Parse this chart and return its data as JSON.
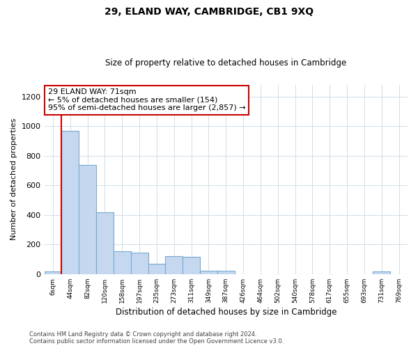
{
  "title": "29, ELAND WAY, CAMBRIDGE, CB1 9XQ",
  "subtitle": "Size of property relative to detached houses in Cambridge",
  "xlabel": "Distribution of detached houses by size in Cambridge",
  "ylabel": "Number of detached properties",
  "bar_color": "#c5d8f0",
  "bar_edge_color": "#7aaad0",
  "background_color": "#ffffff",
  "grid_color": "#d0dde8",
  "bin_labels": [
    "6sqm",
    "44sqm",
    "82sqm",
    "120sqm",
    "158sqm",
    "197sqm",
    "235sqm",
    "273sqm",
    "311sqm",
    "349sqm",
    "387sqm",
    "426sqm",
    "464sqm",
    "502sqm",
    "540sqm",
    "578sqm",
    "617sqm",
    "655sqm",
    "693sqm",
    "731sqm",
    "769sqm"
  ],
  "bar_heights": [
    20,
    970,
    740,
    420,
    155,
    145,
    70,
    120,
    115,
    25,
    25,
    0,
    0,
    0,
    0,
    0,
    0,
    0,
    0,
    20,
    0
  ],
  "ylim": [
    0,
    1280
  ],
  "yticks": [
    0,
    200,
    400,
    600,
    800,
    1000,
    1200
  ],
  "vline_color": "#cc0000",
  "annotation_text": "29 ELAND WAY: 71sqm\n← 5% of detached houses are smaller (154)\n95% of semi-detached houses are larger (2,857) →",
  "annotation_box_color": "#ffffff",
  "annotation_box_edge_color": "#cc0000",
  "footer_line1": "Contains HM Land Registry data © Crown copyright and database right 2024.",
  "footer_line2": "Contains public sector information licensed under the Open Government Licence v3.0."
}
